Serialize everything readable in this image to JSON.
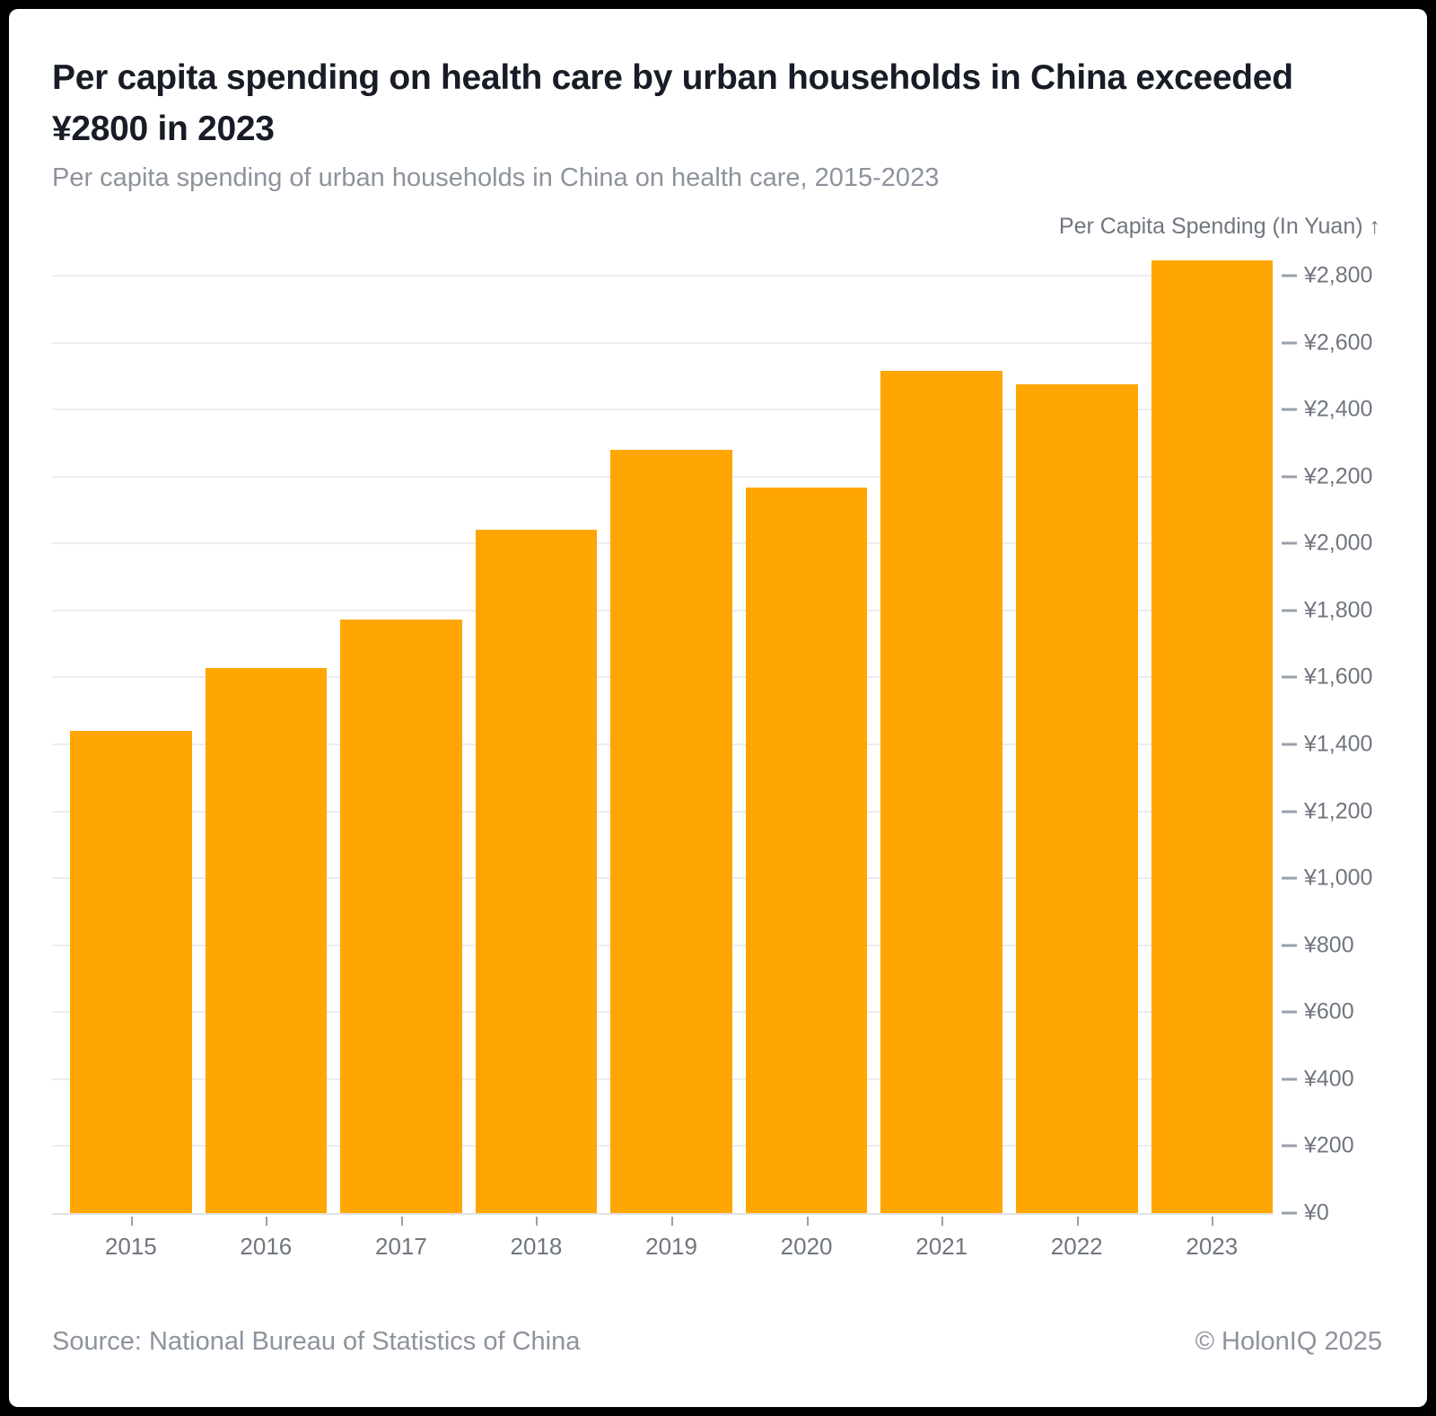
{
  "header": {
    "title": "Per capita spending on health care by urban households in China exceeded ¥2800 in 2023",
    "title_lines": [
      "Per capita spending on health care by urban households in China exceeded",
      "¥2800 in 2023"
    ],
    "subtitle": "Per capita spending of urban households in China on health care, 2015-2023"
  },
  "chart_data": {
    "type": "bar",
    "title": "Per capita spending on health care by urban households in China exceeded ¥2800 in 2023",
    "subtitle": "Per capita spending of urban households in China on health care, 2015-2023",
    "y_axis_title": "Per Capita Spending (In Yuan) ↑",
    "categories": [
      "2015",
      "2016",
      "2017",
      "2018",
      "2019",
      "2020",
      "2021",
      "2022",
      "2023"
    ],
    "values": [
      1443,
      1631,
      1777,
      2046,
      2283,
      2172,
      2521,
      2481,
      2850
    ],
    "xlabel": "",
    "ylabel": "Per Capita Spending (In Yuan)",
    "ylim": [
      0,
      2870
    ],
    "tick_interval": 200,
    "tick_prefix": "¥",
    "grid": true,
    "legend": "none",
    "axis_side": "right"
  },
  "footer": {
    "source": "Source: National Bureau of Statistics of China",
    "copyright": "© HolonIQ 2025"
  },
  "colors": {
    "frame": "#000000",
    "card": "#ffffff",
    "bar": "#ffa602",
    "title_color": "#171c26",
    "muted": "#8d939c",
    "axis_text": "#70767f",
    "gridline": "#ececee",
    "baseline": "#e2e3e6",
    "tick": "#9aa0a8"
  }
}
